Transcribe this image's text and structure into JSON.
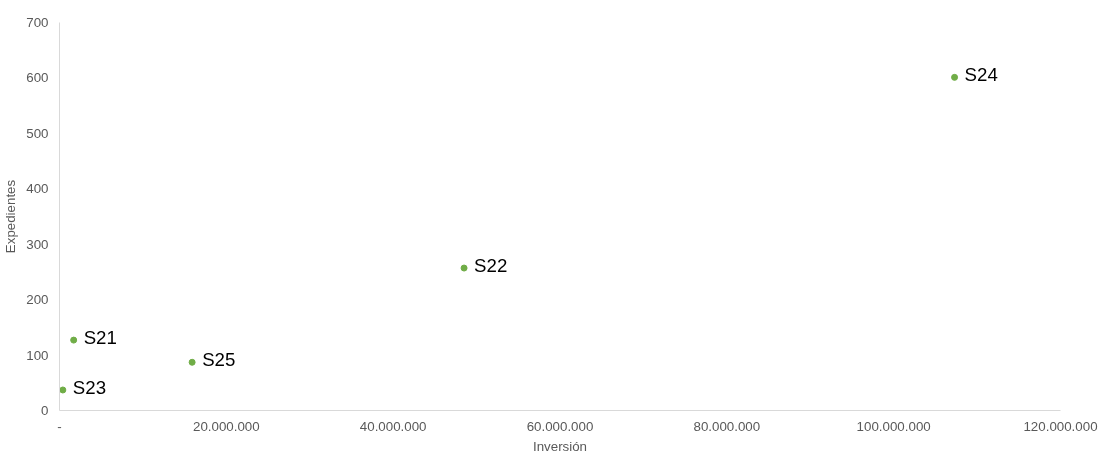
{
  "chart_data": {
    "type": "scatter",
    "xlabel": "Inversión",
    "ylabel": "Expedientes",
    "x": [
      1700000,
      48500000,
      400000,
      107300000,
      15900000
    ],
    "series": [
      {
        "color": "#70ad47",
        "values": [
          127,
          257,
          37,
          601,
          87
        ]
      }
    ],
    "annotations": [
      {
        "text": "S21",
        "x": 1700000,
        "y": 127
      },
      {
        "text": "S22",
        "x": 48500000,
        "y": 257
      },
      {
        "text": "S23",
        "x": 400000,
        "y": 37
      },
      {
        "text": "S24",
        "x": 107300000,
        "y": 601
      },
      {
        "text": "S25",
        "x": 15900000,
        "y": 87
      }
    ],
    "xlim": [
      0,
      120000000
    ],
    "ylim": [
      0,
      700
    ],
    "xticks": [
      {
        "value": 0,
        "label": "-"
      },
      {
        "value": 20000000,
        "label": "20.000.000"
      },
      {
        "value": 40000000,
        "label": "40.000.000"
      },
      {
        "value": 60000000,
        "label": "60.000.000"
      },
      {
        "value": 80000000,
        "label": "80.000.000"
      },
      {
        "value": 100000000,
        "label": "100.000.000"
      },
      {
        "value": 120000000,
        "label": "120.000.000"
      }
    ],
    "yticks": [
      0,
      100,
      200,
      300,
      400,
      500,
      600,
      700
    ],
    "grid": false,
    "marker": "circle"
  }
}
